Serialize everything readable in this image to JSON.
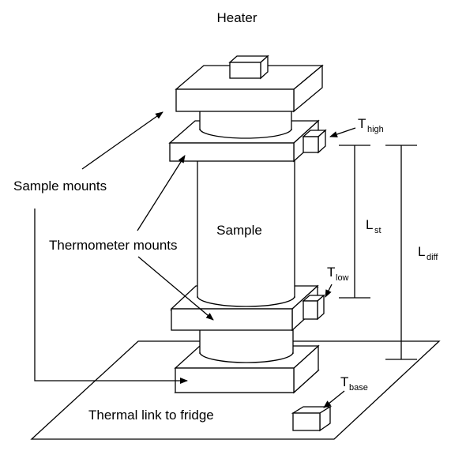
{
  "labels": {
    "heater": "Heater",
    "sample_mounts": "Sample mounts",
    "thermometer_mounts": "Thermometer mounts",
    "sample": "Sample",
    "thermal_link": "Thermal link to fridge"
  },
  "symbols": {
    "t_high": {
      "main": "T",
      "sub": "high"
    },
    "t_low": {
      "main": "T",
      "sub": "low"
    },
    "t_base": {
      "main": "T",
      "sub": "base"
    },
    "l_st": {
      "main": "L",
      "sub": "st"
    },
    "l_diff": {
      "main": "L",
      "sub": "diff"
    }
  },
  "colors": {
    "stroke": "#000000",
    "fill": "#ffffff"
  }
}
